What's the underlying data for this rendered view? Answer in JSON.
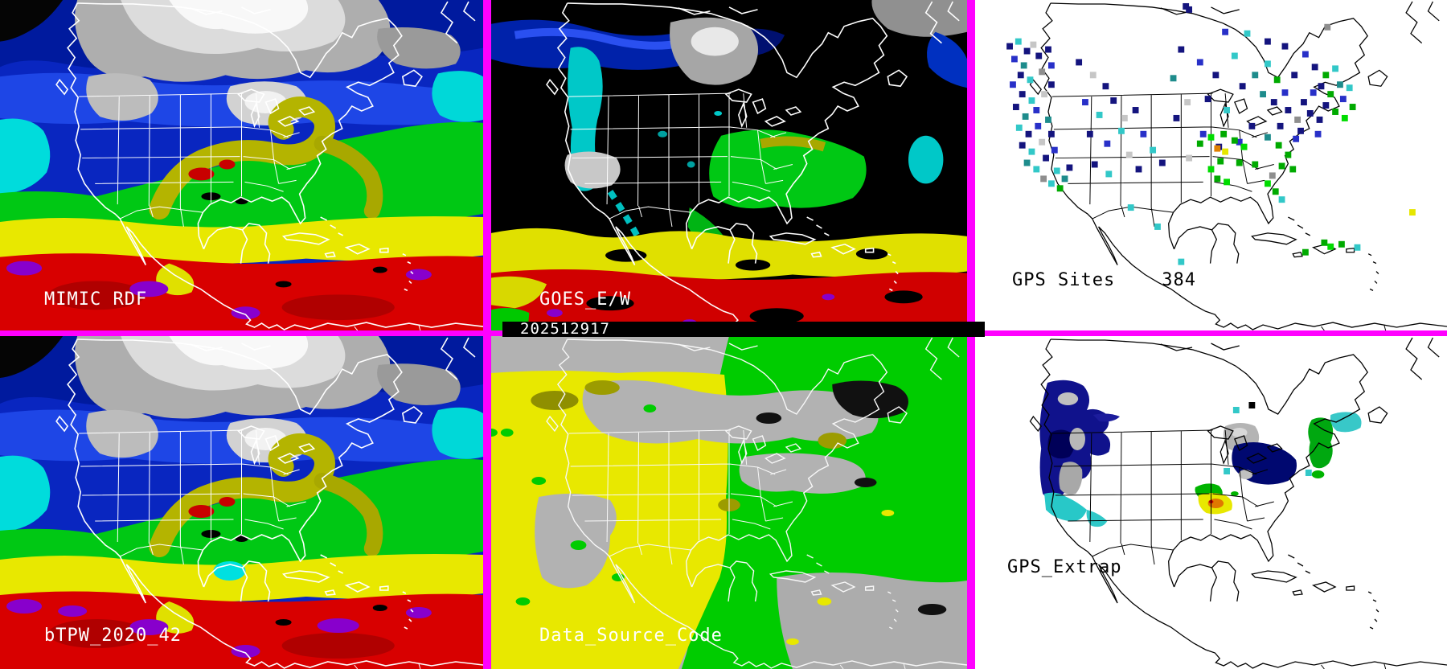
{
  "timestamp_bar": {
    "value": "202512917"
  },
  "panels": {
    "mimic_rdf": {
      "label": "MIMIC RDF"
    },
    "goes": {
      "label": "GOES_E/W"
    },
    "gps_sites": {
      "label": "GPS Sites",
      "count": "384"
    },
    "btpw": {
      "label": "bTPW_2020_42"
    },
    "data_source": {
      "label": "Data_Source_Code"
    },
    "gps_extrap": {
      "label": "GPS_Extrap"
    }
  },
  "colors": {
    "divider": "#FF00FF",
    "timestamp_bg": "#000000",
    "timestamp_text": "#FFFFFF",
    "map_border_light": "#FFFFFF",
    "map_border_dark": "#000000",
    "tpw_palette": [
      "#0926C0",
      "#001A9E",
      "#1E46E6",
      "#00DCDC",
      "#00C814",
      "#B4B400",
      "#E8E800",
      "#D80000",
      "#8800CC",
      "#B4B4B4",
      "#F8F8F8",
      "#000000"
    ],
    "data_source_palette": [
      "#B2B2B2",
      "#00CC00",
      "#E8E800",
      "#9C9C00",
      "#111111"
    ],
    "site_marker_palette": [
      "#14147E",
      "#2830C8",
      "#1E8C8C",
      "#32C8C8",
      "#C6C6C6",
      "#8E8E8E",
      "#00AA00",
      "#00DC00",
      "#E08000",
      "#E6E600",
      "#000000"
    ]
  },
  "gps_sites_markers": [
    [
      44,
      58,
      0
    ],
    [
      55,
      52,
      3
    ],
    [
      66,
      64,
      0
    ],
    [
      50,
      74,
      1
    ],
    [
      62,
      82,
      2
    ],
    [
      74,
      56,
      4
    ],
    [
      81,
      70,
      0
    ],
    [
      58,
      94,
      0
    ],
    [
      70,
      100,
      3
    ],
    [
      48,
      106,
      1
    ],
    [
      85,
      90,
      5
    ],
    [
      93,
      62,
      0
    ],
    [
      97,
      82,
      1
    ],
    [
      60,
      118,
      0
    ],
    [
      72,
      126,
      3
    ],
    [
      52,
      134,
      0
    ],
    [
      64,
      146,
      2
    ],
    [
      78,
      138,
      1
    ],
    [
      88,
      118,
      4
    ],
    [
      97,
      106,
      0
    ],
    [
      56,
      160,
      3
    ],
    [
      68,
      168,
      0
    ],
    [
      80,
      158,
      1
    ],
    [
      93,
      150,
      2
    ],
    [
      60,
      182,
      0
    ],
    [
      72,
      190,
      3
    ],
    [
      85,
      178,
      4
    ],
    [
      97,
      168,
      0
    ],
    [
      66,
      204,
      2
    ],
    [
      78,
      212,
      3
    ],
    [
      90,
      198,
      0
    ],
    [
      101,
      188,
      1
    ],
    [
      104,
      214,
      3
    ],
    [
      114,
      224,
      2
    ],
    [
      97,
      230,
      3
    ],
    [
      108,
      236,
      6
    ],
    [
      120,
      210,
      0
    ],
    [
      87,
      224,
      5
    ],
    [
      132,
      78,
      0
    ],
    [
      150,
      94,
      4
    ],
    [
      166,
      108,
      0
    ],
    [
      140,
      128,
      1
    ],
    [
      158,
      144,
      3
    ],
    [
      176,
      126,
      0
    ],
    [
      190,
      148,
      4
    ],
    [
      146,
      168,
      0
    ],
    [
      168,
      180,
      1
    ],
    [
      186,
      164,
      3
    ],
    [
      204,
      138,
      0
    ],
    [
      214,
      168,
      1
    ],
    [
      196,
      194,
      4
    ],
    [
      152,
      206,
      0
    ],
    [
      170,
      218,
      3
    ],
    [
      208,
      212,
      0
    ],
    [
      226,
      188,
      3
    ],
    [
      238,
      204,
      0
    ],
    [
      272,
      12,
      0
    ],
    [
      318,
      40,
      1
    ],
    [
      262,
      62,
      0
    ],
    [
      286,
      78,
      1
    ],
    [
      306,
      94,
      0
    ],
    [
      330,
      70,
      3
    ],
    [
      252,
      98,
      2
    ],
    [
      340,
      108,
      0
    ],
    [
      270,
      128,
      4
    ],
    [
      296,
      124,
      0
    ],
    [
      320,
      138,
      3
    ],
    [
      256,
      148,
      0
    ],
    [
      290,
      168,
      1
    ],
    [
      310,
      184,
      0
    ],
    [
      272,
      198,
      4
    ],
    [
      336,
      178,
      1
    ],
    [
      352,
      158,
      0
    ],
    [
      356,
      94,
      2
    ],
    [
      372,
      80,
      3
    ],
    [
      384,
      100,
      6
    ],
    [
      366,
      118,
      2
    ],
    [
      380,
      128,
      0
    ],
    [
      394,
      116,
      1
    ],
    [
      406,
      94,
      0
    ],
    [
      398,
      138,
      0
    ],
    [
      410,
      150,
      5
    ],
    [
      388,
      158,
      0
    ],
    [
      372,
      172,
      2
    ],
    [
      418,
      128,
      0
    ],
    [
      430,
      116,
      1
    ],
    [
      432,
      84,
      0
    ],
    [
      446,
      94,
      6
    ],
    [
      458,
      86,
      3
    ],
    [
      440,
      108,
      0
    ],
    [
      452,
      118,
      6
    ],
    [
      464,
      106,
      2
    ],
    [
      446,
      132,
      0
    ],
    [
      458,
      140,
      6
    ],
    [
      468,
      124,
      1
    ],
    [
      476,
      110,
      3
    ],
    [
      438,
      150,
      0
    ],
    [
      470,
      148,
      7
    ],
    [
      480,
      134,
      6
    ],
    [
      426,
      142,
      0
    ],
    [
      414,
      164,
      0
    ],
    [
      436,
      168,
      1
    ],
    [
      308,
      186,
      8
    ],
    [
      318,
      190,
      9
    ],
    [
      300,
      172,
      7
    ],
    [
      286,
      180,
      6
    ],
    [
      330,
      176,
      6
    ],
    [
      342,
      184,
      7
    ],
    [
      316,
      168,
      6
    ],
    [
      300,
      212,
      7
    ],
    [
      312,
      202,
      6
    ],
    [
      336,
      204,
      6
    ],
    [
      308,
      224,
      6
    ],
    [
      320,
      228,
      7
    ],
    [
      356,
      206,
      6
    ],
    [
      386,
      182,
      6
    ],
    [
      398,
      194,
      6
    ],
    [
      408,
      174,
      1
    ],
    [
      390,
      208,
      6
    ],
    [
      404,
      212,
      6
    ],
    [
      378,
      220,
      5
    ],
    [
      372,
      230,
      7
    ],
    [
      382,
      240,
      6
    ],
    [
      390,
      250,
      3
    ],
    [
      444,
      304,
      6
    ],
    [
      452,
      309,
      7
    ],
    [
      466,
      306,
      6
    ],
    [
      486,
      310,
      3
    ],
    [
      556,
      266,
      9
    ],
    [
      420,
      316,
      6
    ],
    [
      198,
      260,
      3
    ],
    [
      232,
      284,
      3
    ],
    [
      262,
      328,
      3
    ],
    [
      268,
      8,
      0
    ],
    [
      448,
      34,
      5
    ],
    [
      394,
      58,
      0
    ],
    [
      420,
      68,
      1
    ],
    [
      372,
      52,
      0
    ],
    [
      346,
      42,
      3
    ]
  ],
  "gps_extrap_markers": [
    [
      332,
      92,
      3
    ],
    [
      352,
      86,
      10
    ],
    [
      424,
      170,
      3
    ],
    [
      320,
      168,
      3
    ]
  ]
}
